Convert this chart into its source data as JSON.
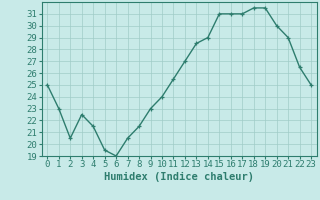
{
  "x": [
    0,
    1,
    2,
    3,
    4,
    5,
    6,
    7,
    8,
    9,
    10,
    11,
    12,
    13,
    14,
    15,
    16,
    17,
    18,
    19,
    20,
    21,
    22,
    23
  ],
  "y": [
    25,
    23,
    20.5,
    22.5,
    21.5,
    19.5,
    19,
    20.5,
    21.5,
    23,
    24,
    25.5,
    27,
    28.5,
    29,
    31,
    31,
    31,
    31.5,
    31.5,
    30,
    29,
    26.5,
    25
  ],
  "line_color": "#2e7d6e",
  "marker_color": "#2e7d6e",
  "bg_color": "#c8eae8",
  "grid_color": "#a0ccc8",
  "xlabel": "Humidex (Indice chaleur)",
  "ylim": [
    19,
    32
  ],
  "xlim": [
    -0.5,
    23.5
  ],
  "yticks": [
    19,
    20,
    21,
    22,
    23,
    24,
    25,
    26,
    27,
    28,
    29,
    30,
    31
  ],
  "xticks": [
    0,
    1,
    2,
    3,
    4,
    5,
    6,
    7,
    8,
    9,
    10,
    11,
    12,
    13,
    14,
    15,
    16,
    17,
    18,
    19,
    20,
    21,
    22,
    23
  ],
  "xlabel_fontsize": 7.5,
  "tick_fontsize": 6.5,
  "marker_size": 3.5,
  "line_width": 1.0
}
